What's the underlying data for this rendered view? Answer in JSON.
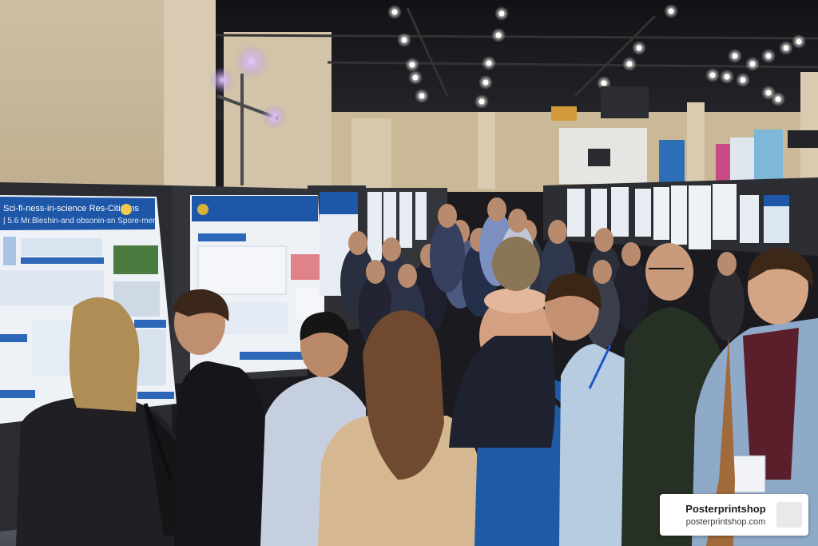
{
  "scene": {
    "watermark": {
      "name": "Posterprintshop",
      "url": "posterprintshop.com"
    },
    "poster_left": {
      "headline": "Sci-fi-ness-in-science Res-Citizens",
      "subline": "| 5.6 Mr.Bleshin-and obsonin-sn Spore-men"
    }
  }
}
